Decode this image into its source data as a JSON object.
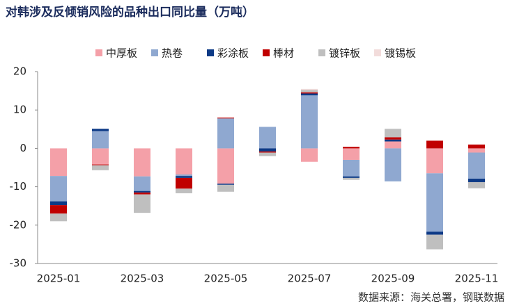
{
  "chart_data": {
    "type": "stacked_bar",
    "title": "对韩涉及反倾销风险的品种出口同比量（万吨）",
    "source": "数据来源：海关总署，钢联数据",
    "categories": [
      "2025-01",
      null,
      "2025-03",
      null,
      "2025-05",
      null,
      "2025-07",
      null,
      "2025-09",
      null,
      "2025-11"
    ],
    "series": [
      {
        "name": "中厚板",
        "color": "#f4a0a8",
        "values": [
          -7.2,
          -4.2,
          -7.3,
          -6.8,
          -9.2,
          0,
          -3.5,
          -3.0,
          1.8,
          -6.5,
          -1.1
        ]
      },
      {
        "name": "热卷",
        "color": "#8fa8d0",
        "values": [
          -6.6,
          4.5,
          -3.8,
          -0.4,
          7.8,
          5.6,
          13.8,
          -4.3,
          -8.6,
          -15.2,
          -6.8
        ]
      },
      {
        "name": "彩涂板",
        "color": "#0d3a86",
        "values": [
          -1.0,
          0.6,
          -0.4,
          -0.5,
          -0.3,
          -0.8,
          0.5,
          -0.4,
          0.5,
          -0.8,
          -0.9
        ]
      },
      {
        "name": "棒材",
        "color": "#c00000",
        "values": [
          -2.2,
          -0.2,
          -0.5,
          -2.8,
          0.2,
          -0.3,
          0.3,
          0.4,
          0.6,
          2.0,
          1.0
        ]
      },
      {
        "name": "镀锌板",
        "color": "#bfbfbf",
        "values": [
          -2.0,
          -1.3,
          -4.8,
          -1.2,
          -1.8,
          -0.9,
          0.6,
          -0.5,
          2.2,
          -3.8,
          -1.6
        ]
      },
      {
        "name": "镀锡板",
        "color": "#f2dcdb",
        "values": [
          0,
          0,
          0,
          0,
          0,
          0,
          0.3,
          0,
          0,
          0,
          0
        ]
      }
    ],
    "ylim": [
      -30,
      20
    ],
    "yticks": [
      -30,
      -20,
      -10,
      0,
      10,
      20
    ],
    "legend": "top"
  }
}
